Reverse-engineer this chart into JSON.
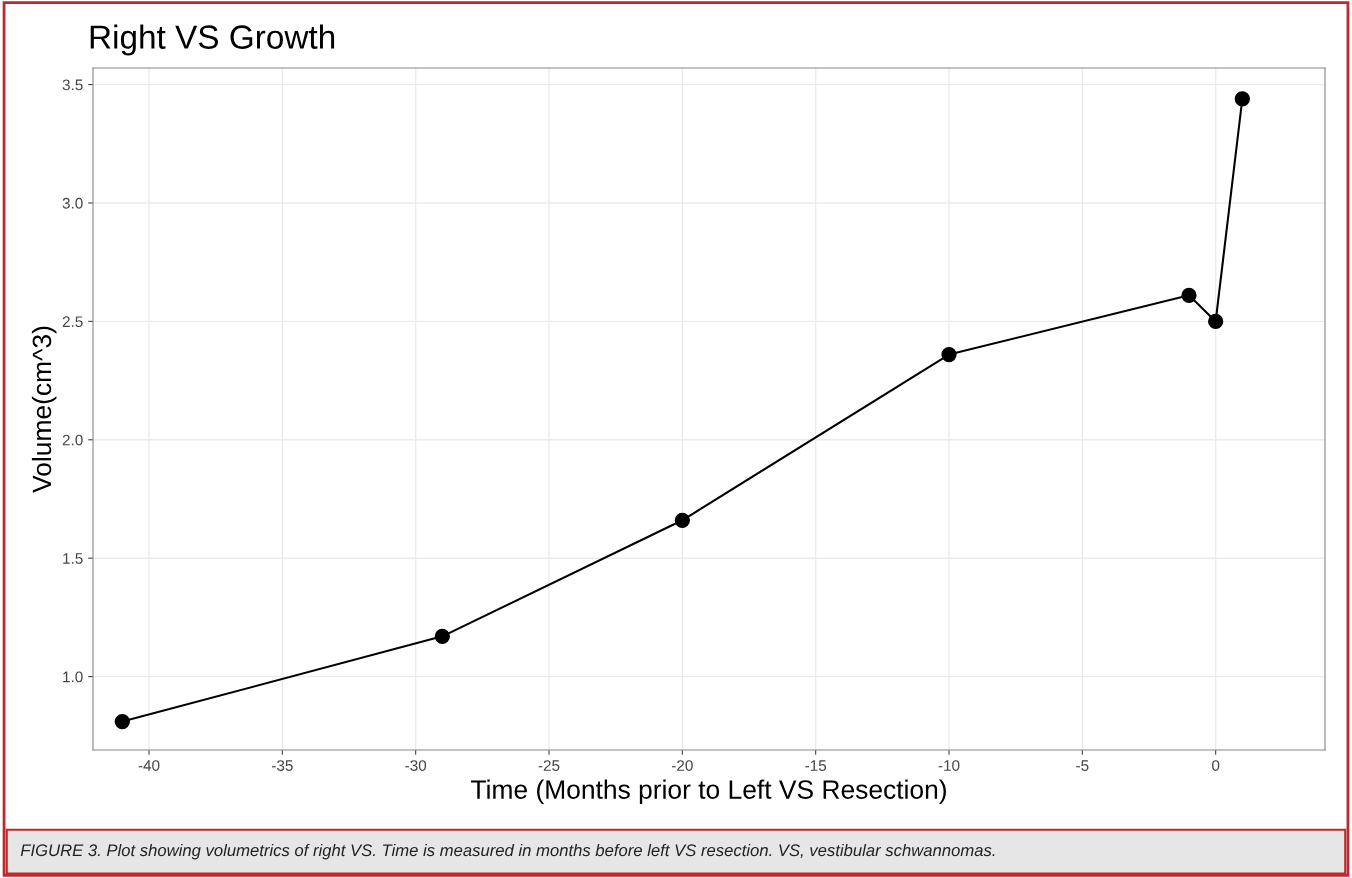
{
  "chart_data": {
    "type": "line",
    "title": "Right VS Growth",
    "xlabel": "Time (Months prior to Left VS Resection)",
    "ylabel": "Volume(cm^3)",
    "x": [
      -41,
      -29,
      -20,
      -10,
      -1,
      0,
      1
    ],
    "series": [
      {
        "color": "#000000",
        "values": [
          0.81,
          1.17,
          1.66,
          2.36,
          2.61,
          2.5,
          3.44
        ]
      }
    ],
    "xlim": [
      -42.1,
      4.1
    ],
    "xticks": [
      -40,
      -35,
      -30,
      -25,
      -20,
      -15,
      -10,
      -5,
      0
    ],
    "ylim": [
      0.69,
      3.57
    ],
    "yticks": [
      {
        "value": 1.0,
        "label": "1.0"
      },
      {
        "value": 1.5,
        "label": "1.5"
      },
      {
        "value": 2.0,
        "label": "2.0"
      },
      {
        "value": 2.5,
        "label": "2.5"
      },
      {
        "value": 3.0,
        "label": "3.0"
      },
      {
        "value": 3.5,
        "label": "3.5"
      }
    ],
    "grid": true,
    "marker": "circle",
    "line_style": "solid",
    "legend": false,
    "annotations": [
      "FIGURE 3. Plot showing volumetrics of right VS. Time is measured in months before left VS resection. VS, vestibular schwannomas."
    ]
  }
}
